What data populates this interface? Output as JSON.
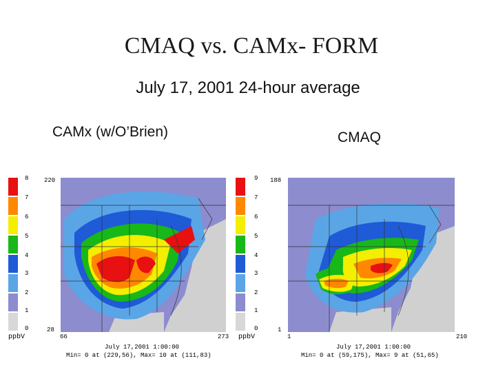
{
  "title": "CMAQ vs. CAMx- FORM",
  "subtitle": "July 17, 2001 24-hour average",
  "colors": {
    "bin_0_1": "#c8c8c8",
    "bin_1_2": "#8c8ccf",
    "bin_2_3": "#5aa5e6",
    "bin_3_4": "#1f5ad7",
    "bin_4_5": "#00a0a0",
    "bin_5_6": "#18b818",
    "bin_6_7": "#f4ee00",
    "bin_7_8": "#ff8800",
    "bin_8_9": "#e81010",
    "land_gray": "#d0d0d0"
  },
  "panels": {
    "left": {
      "label": "CAMx (w/O’Brien)",
      "colorbar_ticks": [
        "8",
        "7",
        "6",
        "5",
        "4",
        "3",
        "2",
        "1",
        "0"
      ],
      "unit": "ppbV",
      "y_top": "220",
      "y_bottom": "28",
      "x_left": "66",
      "x_right": "273",
      "date": "July 17,2001 1:00:00",
      "minmax": "Min=    0 at (229,56), Max=   10 at (111,83)"
    },
    "right": {
      "label": "CMAQ",
      "colorbar_ticks": [
        "9",
        "7",
        "6",
        "5",
        "4",
        "3",
        "2",
        "1",
        "0"
      ],
      "unit": "ppbV",
      "y_top": "188",
      "y_bottom": "1",
      "x_left": "1",
      "x_right": "210",
      "date": "July 17,2001 1:00:00",
      "minmax": "Min=    0 at (59,175), Max=    9 at (51,65)"
    }
  }
}
